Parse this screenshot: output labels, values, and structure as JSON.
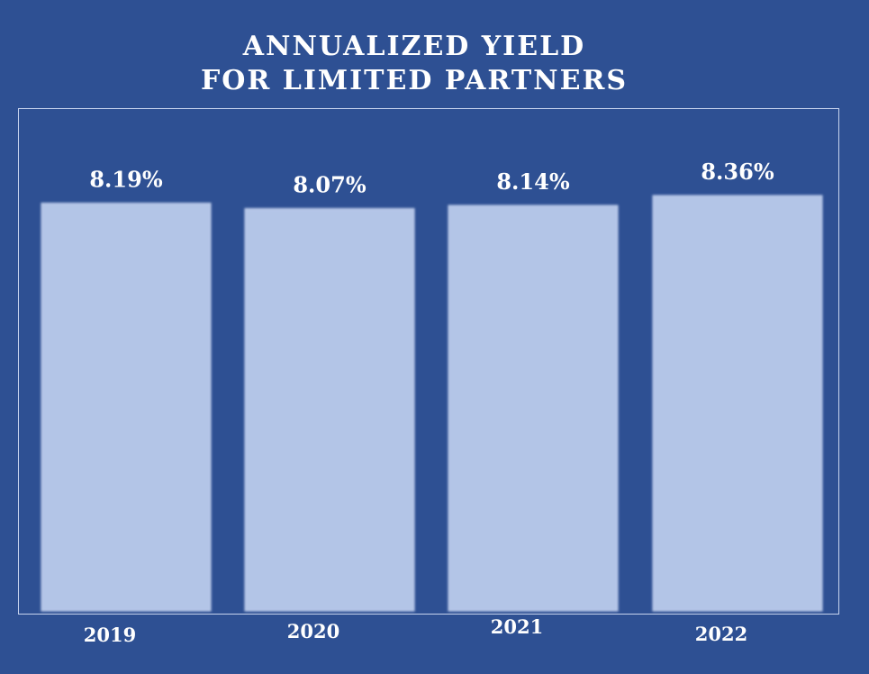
{
  "title": {
    "line1": "ANNUALIZED YIELD",
    "line2": "FOR LIMITED PARTNERS"
  },
  "colors": {
    "background": "#2e5093",
    "bar": "#b3c5e7",
    "frame": "#c7d3ee",
    "text": "#ffffff"
  },
  "chart_data": {
    "type": "bar",
    "title": "ANNUALIZED YIELD FOR LIMITED PARTNERS",
    "categories": [
      "2019",
      "2020",
      "2021",
      "2022"
    ],
    "values": [
      8.19,
      8.07,
      8.14,
      8.36
    ],
    "value_labels": [
      "8.19%",
      "8.07%",
      "8.14%",
      "8.36%"
    ],
    "xlabel": "",
    "ylabel": "",
    "ylim": [
      0,
      9.3
    ],
    "grid": false,
    "legend": "none"
  }
}
